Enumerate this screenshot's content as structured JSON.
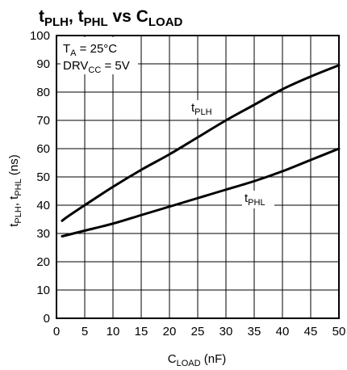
{
  "chart_data": {
    "type": "line",
    "title": {
      "main": "t",
      "sub1": "PLH",
      "mid": ", t",
      "sub2": "PHL",
      "tail": " vs C",
      "sub3": "LOAD"
    },
    "xlabel": {
      "main": "C",
      "sub": "LOAD",
      "tail": " (nF)"
    },
    "ylabel": {
      "p1": "t",
      "s1": "PLH",
      "p2": ", t",
      "s2": "PHL",
      "p3": " (ns)"
    },
    "xlim": [
      0,
      50
    ],
    "ylim": [
      0,
      100
    ],
    "x_ticks": [
      "0",
      "5",
      "10",
      "15",
      "20",
      "25",
      "30",
      "35",
      "40",
      "45",
      "50"
    ],
    "y_ticks": [
      "0",
      "10",
      "20",
      "30",
      "40",
      "50",
      "60",
      "70",
      "80",
      "90",
      "100"
    ],
    "grid": true,
    "annotations": {
      "ta": {
        "main": "T",
        "sub": "A",
        "tail": " = 25°C"
      },
      "drv": {
        "main": "DRV",
        "sub": "CC",
        "tail": " = 5V"
      }
    },
    "series": [
      {
        "name": {
          "main": "t",
          "sub": "PLH"
        },
        "x": [
          1,
          2,
          5,
          10,
          15,
          20,
          25,
          30,
          35,
          40,
          45,
          50
        ],
        "y": [
          34.5,
          36,
          40,
          46.5,
          52.5,
          58,
          64,
          70,
          75.5,
          81,
          85.5,
          89.5
        ]
      },
      {
        "name": {
          "main": "t",
          "sub": "PHL"
        },
        "x": [
          1,
          2,
          5,
          10,
          15,
          20,
          25,
          30,
          35,
          40,
          45,
          50
        ],
        "y": [
          29,
          29.5,
          31,
          33.5,
          36.5,
          39.5,
          42.5,
          45.5,
          48.5,
          52,
          56,
          60
        ]
      }
    ]
  }
}
